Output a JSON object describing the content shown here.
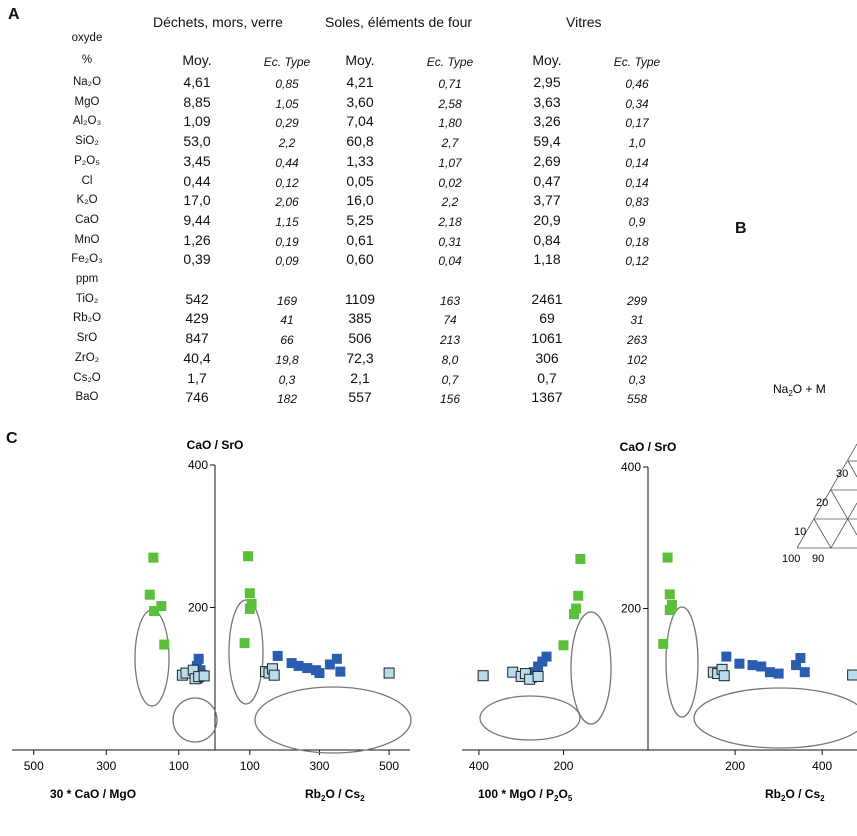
{
  "panel_a": {
    "letter": "A",
    "group_headers": [
      "Déchets, mors, verre",
      "Soles, éléments de four",
      "Vitres"
    ],
    "col_label_oxyde": "oxyde",
    "col_label_pct": "%",
    "sub_headers": [
      "Moy.",
      "Ec. Type",
      "Moy.",
      "Ec. Type",
      "Moy.",
      "Ec. Type"
    ],
    "rows": [
      {
        "oxide": "Na₂O",
        "v": [
          "4,61",
          "0,85",
          "4,21",
          "0,71",
          "2,95",
          "0,46"
        ]
      },
      {
        "oxide": "MgO",
        "v": [
          "8,85",
          "1,05",
          "3,60",
          "2,58",
          "3,63",
          "0,34"
        ]
      },
      {
        "oxide": "Al₂O₃",
        "v": [
          "1,09",
          "0,29",
          "7,04",
          "1,80",
          "3,26",
          "0,17"
        ]
      },
      {
        "oxide": "SiO₂",
        "v": [
          "53,0",
          "2,2",
          "60,8",
          "2,7",
          "59,4",
          "1,0"
        ]
      },
      {
        "oxide": "P₂O₅",
        "v": [
          "3,45",
          "0,44",
          "1,33",
          "1,07",
          "2,69",
          "0,14"
        ]
      },
      {
        "oxide": "Cl",
        "v": [
          "0,44",
          "0,12",
          "0,05",
          "0,02",
          "0,47",
          "0,14"
        ]
      },
      {
        "oxide": "K₂O",
        "v": [
          "17,0",
          "2,06",
          "16,0",
          "2,2",
          "3,77",
          "0,83"
        ]
      },
      {
        "oxide": "CaO",
        "v": [
          "9,44",
          "1,15",
          "5,25",
          "2,18",
          "20,9",
          "0,9"
        ]
      },
      {
        "oxide": "MnO",
        "v": [
          "1,26",
          "0,19",
          "0,61",
          "0,31",
          "0,84",
          "0,18"
        ]
      },
      {
        "oxide": "Fe₂O₃",
        "v": [
          "0,39",
          "0,09",
          "0,60",
          "0,04",
          "1,18",
          "0,12"
        ]
      },
      {
        "oxide": "ppm",
        "v": [
          "",
          "",
          "",
          "",
          "",
          ""
        ]
      },
      {
        "oxide": "TiO₂",
        "v": [
          "542",
          "169",
          "1109",
          "163",
          "2461",
          "299"
        ]
      },
      {
        "oxide": "Rb₂O",
        "v": [
          "429",
          "41",
          "385",
          "74",
          "69",
          "31"
        ]
      },
      {
        "oxide": "SrO",
        "v": [
          "847",
          "66",
          "506",
          "213",
          "1061",
          "263"
        ]
      },
      {
        "oxide": "ZrO₂",
        "v": [
          "40,4",
          "19,8",
          "72,3",
          "8,0",
          "306",
          "102"
        ]
      },
      {
        "oxide": "Cs₂O",
        "v": [
          "1,7",
          "0,3",
          "2,1",
          "0,7",
          "0,7",
          "0,3"
        ]
      },
      {
        "oxide": "BaO",
        "v": [
          "746",
          "182",
          "557",
          "156",
          "1367",
          "558"
        ]
      }
    ]
  },
  "panel_b": {
    "letter": "B",
    "label_na2o": "Na",
    "label_na2o_sub": "2",
    "label_na2o_rest": "O + M",
    "tick_labels": [
      "30",
      "20",
      "10",
      "100",
      "90"
    ]
  },
  "panel_c": {
    "letter": "C"
  },
  "chart_data": [
    {
      "type": "scatter",
      "title": "",
      "ylabel": "CaO / SrO",
      "xlabel_left": "30 * CaO / MgO",
      "xlabel_right_base": "Rb",
      "xlabel_right_sub1": "2",
      "xlabel_right_mid": "O / Cs",
      "xlabel_right_sub2": "2",
      "x_ticks_left": [
        "500",
        "300",
        "100"
      ],
      "x_ticks_right": [
        "100",
        "300",
        "500"
      ],
      "y_ticks": [
        "400",
        "200"
      ],
      "ylim": [
        0,
        400
      ],
      "x_left_range": [
        560,
        0
      ],
      "x_right_range": [
        0,
        560
      ],
      "series": [
        {
          "color": "#5cbf3a",
          "marker": "filled-square",
          "points_left": [
            [
              170,
              270
            ],
            [
              180,
              218
            ],
            [
              168,
              195
            ],
            [
              148,
              202
            ],
            [
              140,
              148
            ]
          ],
          "points_right": [
            [
              95,
              272
            ],
            [
              100,
              220
            ],
            [
              105,
              205
            ],
            [
              100,
              198
            ],
            [
              85,
              150
            ]
          ]
        },
        {
          "color": "#2a5db0",
          "marker": "filled-square",
          "points_left": [
            [
              45,
              128
            ],
            [
              40,
              112
            ],
            [
              50,
              118
            ],
            [
              35,
              105
            ],
            [
              48,
              100
            ]
          ],
          "points_right": [
            [
              180,
              132
            ],
            [
              220,
              122
            ],
            [
              240,
              118
            ],
            [
              265,
              115
            ],
            [
              290,
              112
            ],
            [
              300,
              108
            ],
            [
              330,
              120
            ],
            [
              350,
              128
            ],
            [
              360,
              110
            ]
          ]
        },
        {
          "color": "#b8dcec",
          "marker": "outlined-square",
          "points_left": [
            [
              90,
              105
            ],
            [
              80,
              108
            ],
            [
              60,
              112
            ],
            [
              55,
              100
            ],
            [
              45,
              103
            ],
            [
              30,
              104
            ]
          ],
          "points_right": [
            [
              145,
              110
            ],
            [
              155,
              108
            ],
            [
              165,
              114
            ],
            [
              170,
              105
            ],
            [
              500,
              108
            ]
          ]
        }
      ]
    },
    {
      "type": "scatter",
      "title": "",
      "ylabel": "CaO / SrO",
      "xlabel_left_base": "100 * MgO / P",
      "xlabel_left_sub": "2",
      "xlabel_left_rest": "O",
      "xlabel_left_sub2": "5",
      "xlabel_right_base": "Rb",
      "xlabel_right_sub1": "2",
      "xlabel_right_mid": "O / Cs",
      "xlabel_right_sub2": "2",
      "x_ticks_left": [
        "400",
        "200"
      ],
      "x_ticks_right": [
        "200",
        "400"
      ],
      "y_ticks": [
        "400",
        "200"
      ],
      "ylim": [
        0,
        400
      ],
      "x_left_range": [
        440,
        0
      ],
      "x_right_range": [
        0,
        480
      ],
      "series": [
        {
          "color": "#5cbf3a",
          "marker": "filled-square",
          "points_left": [
            [
              160,
              270
            ],
            [
              165,
              218
            ],
            [
              170,
              200
            ],
            [
              175,
              192
            ],
            [
              200,
              148
            ]
          ],
          "points_right": [
            [
              45,
              272
            ],
            [
              50,
              220
            ],
            [
              55,
              205
            ],
            [
              50,
              198
            ],
            [
              35,
              150
            ]
          ]
        },
        {
          "color": "#2a5db0",
          "marker": "filled-square",
          "points_left": [
            [
              240,
              132
            ],
            [
              250,
              125
            ],
            [
              260,
              118
            ],
            [
              270,
              110
            ],
            [
              275,
              102
            ]
          ],
          "points_right": [
            [
              180,
              132
            ],
            [
              210,
              122
            ],
            [
              240,
              120
            ],
            [
              260,
              118
            ],
            [
              280,
              110
            ],
            [
              300,
              108
            ],
            [
              340,
              120
            ],
            [
              350,
              130
            ],
            [
              360,
              110
            ]
          ]
        },
        {
          "color": "#b8dcec",
          "marker": "outlined-square",
          "points_left": [
            [
              390,
              105
            ],
            [
              320,
              110
            ],
            [
              300,
              104
            ],
            [
              290,
              108
            ],
            [
              280,
              100
            ],
            [
              260,
              104
            ]
          ],
          "points_right": [
            [
              150,
              110
            ],
            [
              160,
              108
            ],
            [
              170,
              114
            ],
            [
              175,
              105
            ],
            [
              470,
              106
            ]
          ]
        }
      ]
    }
  ]
}
